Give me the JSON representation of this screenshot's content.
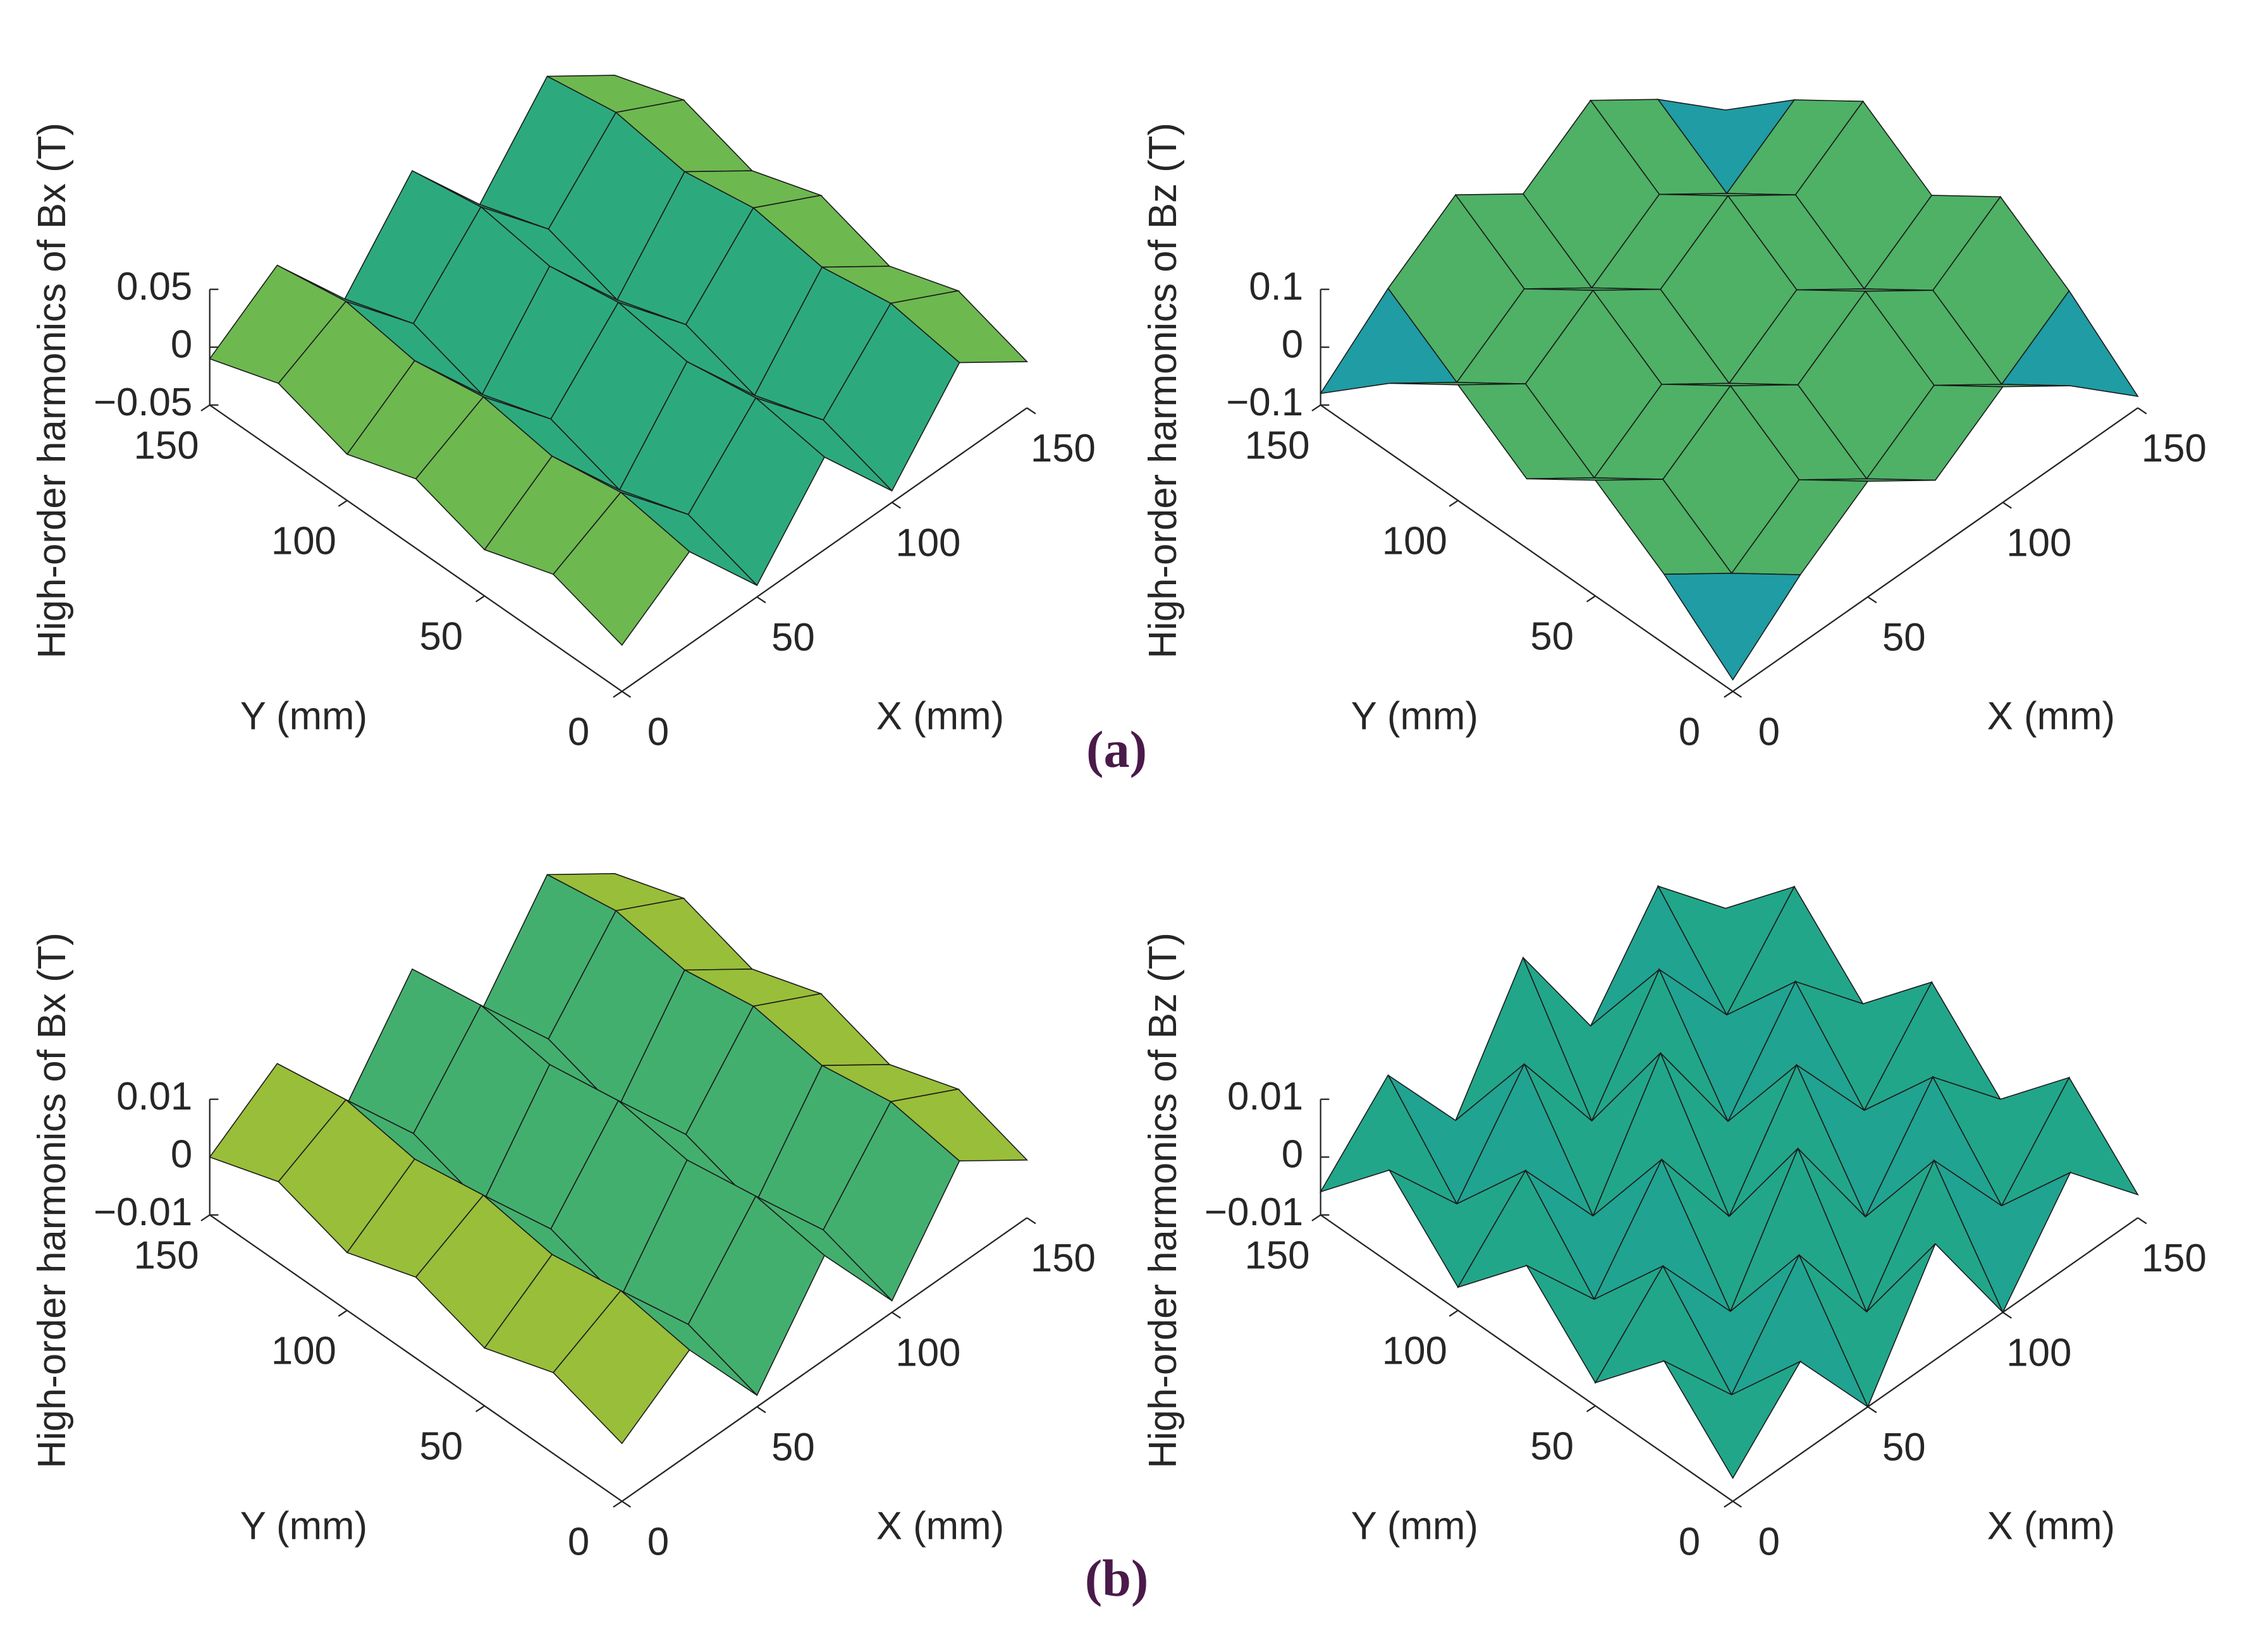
{
  "chart_data": [
    {
      "type": "surface",
      "zlabel": "High-order harmonics of Bx (T)",
      "xlabel": "X (mm)",
      "ylabel": "Y (mm)",
      "x": [
        0,
        25,
        50,
        75,
        100,
        125,
        150
      ],
      "y": [
        0,
        25,
        50,
        75,
        100,
        125,
        150
      ],
      "z": [
        [
          -0.01,
          0.03,
          -0.04,
          0.03,
          -0.04,
          0.03,
          -0.01
        ],
        [
          0.01,
          0.04,
          -0.02,
          0.04,
          -0.02,
          0.04,
          0.01
        ],
        [
          -0.01,
          0.03,
          -0.04,
          0.03,
          -0.04,
          0.03,
          -0.01
        ],
        [
          0.01,
          0.04,
          -0.02,
          0.04,
          -0.02,
          0.04,
          0.01
        ],
        [
          -0.01,
          0.03,
          -0.04,
          0.03,
          -0.04,
          0.03,
          -0.01
        ],
        [
          0.01,
          0.04,
          -0.02,
          0.04,
          -0.02,
          0.04,
          0.01
        ],
        [
          -0.01,
          0.03,
          -0.04,
          0.03,
          -0.04,
          0.03,
          -0.01
        ]
      ],
      "xlim": [
        0,
        150
      ],
      "ylim": [
        0,
        150
      ],
      "zlim": [
        -0.05,
        0.05
      ],
      "xticks": [
        0,
        50,
        100,
        150
      ],
      "yticks": [
        0,
        50,
        100,
        150
      ],
      "zticks": [
        {
          "value": -0.05,
          "label": "−0.05"
        },
        0,
        0.05
      ]
    },
    {
      "type": "surface",
      "zlabel": "High-order harmonics of Bz (T)",
      "xlabel": "X (mm)",
      "ylabel": "Y (mm)",
      "x": [
        0,
        25,
        50,
        75,
        100,
        125,
        150
      ],
      "y": [
        0,
        25,
        50,
        75,
        100,
        125,
        150
      ],
      "z": [
        [
          -0.08,
          0.02,
          0.1,
          0.02,
          0.1,
          0.02,
          -0.08
        ],
        [
          0.02,
          -0.06,
          0.02,
          -0.06,
          0.02,
          -0.06,
          0.02
        ],
        [
          0.1,
          0.02,
          0.1,
          0.02,
          0.1,
          0.02,
          0.1
        ],
        [
          0.02,
          -0.06,
          0.02,
          -0.06,
          0.02,
          -0.06,
          0.02
        ],
        [
          0.1,
          0.02,
          0.1,
          0.02,
          0.1,
          0.02,
          0.1
        ],
        [
          0.02,
          -0.06,
          0.02,
          -0.06,
          0.02,
          -0.06,
          0.02
        ],
        [
          -0.08,
          0.02,
          0.1,
          0.02,
          0.1,
          0.02,
          -0.08
        ]
      ],
      "xlim": [
        0,
        150
      ],
      "ylim": [
        0,
        150
      ],
      "zlim": [
        -0.1,
        0.1
      ],
      "xticks": [
        0,
        50,
        100,
        150
      ],
      "yticks": [
        0,
        50,
        100,
        150
      ],
      "zticks": [
        {
          "value": -0.1,
          "label": "−0.1"
        },
        0,
        0.1
      ]
    },
    {
      "type": "surface",
      "zlabel": "High-order harmonics of Bx (T)",
      "xlabel": "X (mm)",
      "ylabel": "Y (mm)",
      "x": [
        0,
        25,
        50,
        75,
        100,
        125,
        150
      ],
      "y": [
        0,
        25,
        50,
        75,
        100,
        125,
        150
      ],
      "z": [
        [
          0,
          0.008,
          -0.008,
          0.008,
          -0.008,
          0.008,
          0
        ],
        [
          0.004,
          0.01,
          -0.004,
          0.01,
          -0.004,
          0.01,
          0.004
        ],
        [
          0,
          0.008,
          -0.008,
          0.008,
          -0.008,
          0.008,
          0
        ],
        [
          0.004,
          0.01,
          -0.004,
          0.01,
          -0.004,
          0.01,
          0.004
        ],
        [
          0,
          0.008,
          -0.008,
          0.008,
          -0.008,
          0.008,
          0
        ],
        [
          0.004,
          0.01,
          -0.004,
          0.01,
          -0.004,
          0.01,
          0.004
        ],
        [
          0,
          0.008,
          -0.008,
          0.008,
          -0.008,
          0.008,
          0
        ]
      ],
      "xlim": [
        0,
        150
      ],
      "ylim": [
        0,
        150
      ],
      "zlim": [
        -0.01,
        0.01
      ],
      "xticks": [
        0,
        50,
        100,
        150
      ],
      "yticks": [
        0,
        50,
        100,
        150
      ],
      "zticks": [
        {
          "value": -0.01,
          "label": "−0.01"
        },
        0,
        0.01
      ]
    },
    {
      "type": "surface",
      "zlabel": "High-order harmonics of Bz (T)",
      "xlabel": "X (mm)",
      "ylabel": "Y (mm)",
      "x": [
        0,
        25,
        50,
        75,
        100,
        125,
        150
      ],
      "y": [
        0,
        25,
        50,
        75,
        100,
        125,
        150
      ],
      "z": [
        [
          -0.006,
          0.006,
          -0.01,
          0.01,
          -0.01,
          0.006,
          -0.006
        ],
        [
          0.006,
          -0.008,
          0.008,
          -0.01,
          0.008,
          -0.008,
          0.006
        ],
        [
          -0.006,
          0.006,
          -0.01,
          0.01,
          -0.01,
          0.006,
          -0.006
        ],
        [
          0.006,
          -0.008,
          0.008,
          -0.01,
          0.008,
          -0.008,
          0.006
        ],
        [
          -0.006,
          0.006,
          -0.01,
          0.01,
          -0.01,
          0.006,
          -0.006
        ],
        [
          0.006,
          -0.008,
          0.008,
          -0.01,
          0.008,
          -0.008,
          0.006
        ],
        [
          -0.006,
          0.006,
          -0.01,
          0.01,
          -0.01,
          0.006,
          -0.006
        ]
      ],
      "xlim": [
        0,
        150
      ],
      "ylim": [
        0,
        150
      ],
      "zlim": [
        -0.01,
        0.01
      ],
      "xticks": [
        0,
        50,
        100,
        150
      ],
      "yticks": [
        0,
        50,
        100,
        150
      ],
      "zticks": [
        {
          "value": -0.01,
          "label": "−0.01"
        },
        0,
        0.01
      ]
    }
  ],
  "panel_labels": [
    "(a)",
    "(b)"
  ]
}
